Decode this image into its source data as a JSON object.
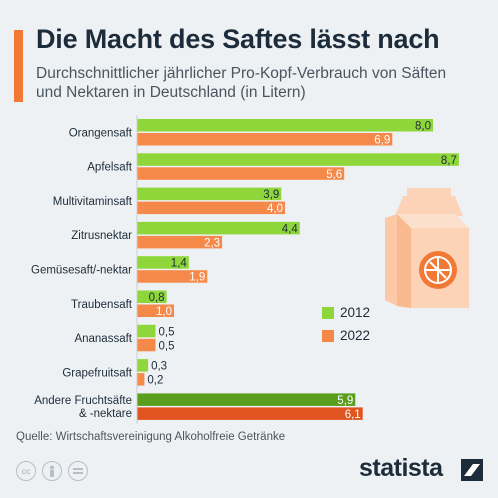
{
  "header": {
    "title": "Die Macht des Saftes lässt nach",
    "subtitle": "Durchschnittlicher jährlicher Pro-Kopf-Verbrauch von Säften und Nektaren in Deutschland (in Litern)"
  },
  "colors": {
    "accent": "#f27935",
    "series_2012": "#8fd63a",
    "series_2022": "#f5894a",
    "highlight_2012": "#5a9e1e",
    "highlight_2022": "#e0541f"
  },
  "chart_data": {
    "type": "bar",
    "orientation": "horizontal",
    "categories": [
      "Orangensaft",
      "Apfelsaft",
      "Multivitaminsaft",
      "Zitrusnektar",
      "Gemüsesaft/-nektar",
      "Traubensaft",
      "Ananassaft",
      "Grapefruitsaft",
      "Andere Fruchtsäfte\n& -nektare"
    ],
    "series": [
      {
        "name": "2012",
        "values": [
          8.0,
          8.7,
          3.9,
          4.4,
          1.4,
          0.8,
          0.5,
          0.3,
          5.9
        ],
        "labels": [
          "8,0",
          "8,7",
          "3,9",
          "4,4",
          "1,4",
          "0,8",
          "0,5",
          "0,3",
          "5,9"
        ]
      },
      {
        "name": "2022",
        "values": [
          6.9,
          5.6,
          4.0,
          2.3,
          1.9,
          1.0,
          0.5,
          0.2,
          6.1
        ],
        "labels": [
          "6,9",
          "5,6",
          "4,0",
          "2,3",
          "1,9",
          "1,0",
          "0,5",
          "0,2",
          "6,1"
        ]
      }
    ],
    "xlim": [
      0,
      9
    ],
    "legend": "right",
    "grid": false
  },
  "legend": {
    "items": [
      {
        "label": "2012",
        "color": "#8fd63a"
      },
      {
        "label": "2022",
        "color": "#f5894a"
      }
    ]
  },
  "footer": {
    "source": "Quelle: Wirtschaftsvereinigung Alkoholfreie Getränke",
    "brand": "statista",
    "license_icons": [
      "cc-icon",
      "person-icon",
      "equals-icon"
    ]
  }
}
